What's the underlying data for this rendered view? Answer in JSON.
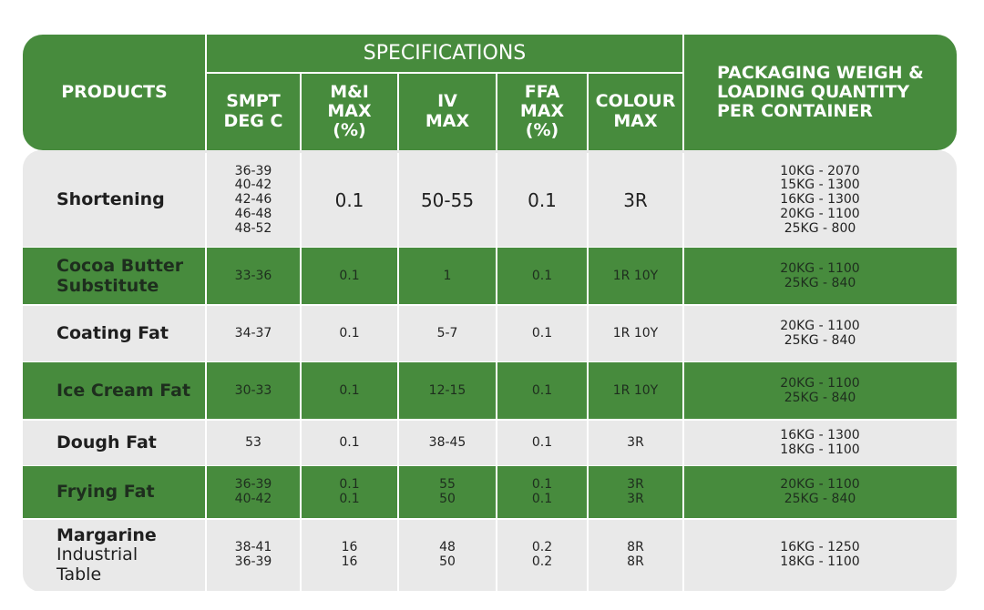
{
  "header": {
    "products": "PRODUCTS",
    "specifications": "SPECIFICATIONS",
    "columns": [
      [
        "SMPT",
        "DEG C"
      ],
      [
        "M&I",
        "MAX",
        "(%)"
      ],
      [
        "IV",
        "MAX"
      ],
      [
        "FFA",
        "MAX",
        "(%)"
      ],
      [
        "COLOUR",
        "MAX"
      ]
    ],
    "packaging": [
      "PACKAGING WEIGH &",
      "LOADING QUANTITY",
      "PER CONTAINER"
    ]
  },
  "rows": [
    {
      "product": [
        "Shortening"
      ],
      "smpt": [
        "36-39",
        "40-42",
        "42-46",
        "46-48",
        "48-52"
      ],
      "mi": [
        "0.1"
      ],
      "iv": [
        "50-55"
      ],
      "ffa": [
        "0.1"
      ],
      "colour": [
        "3R"
      ],
      "packaging": [
        "10KG - 2070",
        "15KG - 1300",
        "16KG - 1300",
        "20KG - 1100",
        "25KG - 800"
      ]
    },
    {
      "product": [
        "Cocoa Butter",
        "Substitute"
      ],
      "smpt": [
        "33-36"
      ],
      "mi": [
        "0.1"
      ],
      "iv": [
        "1"
      ],
      "ffa": [
        "0.1"
      ],
      "colour": [
        "1R 10Y"
      ],
      "packaging": [
        "20KG - 1100",
        "25KG - 840"
      ]
    },
    {
      "product": [
        "Coating Fat"
      ],
      "smpt": [
        "34-37"
      ],
      "mi": [
        "0.1"
      ],
      "iv": [
        "5-7"
      ],
      "ffa": [
        "0.1"
      ],
      "colour": [
        "1R 10Y"
      ],
      "packaging": [
        "20KG - 1100",
        "25KG - 840"
      ]
    },
    {
      "product": [
        "Ice Cream Fat"
      ],
      "smpt": [
        "30-33"
      ],
      "mi": [
        "0.1"
      ],
      "iv": [
        "12-15"
      ],
      "ffa": [
        "0.1"
      ],
      "colour": [
        "1R 10Y"
      ],
      "packaging": [
        "20KG - 1100",
        "25KG - 840"
      ]
    },
    {
      "product": [
        "Dough Fat"
      ],
      "smpt": [
        "53"
      ],
      "mi": [
        "0.1"
      ],
      "iv": [
        "38-45"
      ],
      "ffa": [
        "0.1"
      ],
      "colour": [
        "3R"
      ],
      "packaging": [
        "16KG - 1300",
        "18KG - 1100"
      ]
    },
    {
      "product": [
        "Frying Fat"
      ],
      "smpt": [
        "36-39",
        "40-42"
      ],
      "mi": [
        "0.1",
        "0.1"
      ],
      "iv": [
        "55",
        "50"
      ],
      "ffa": [
        "0.1",
        "0.1"
      ],
      "colour": [
        "3R",
        "3R"
      ],
      "packaging": [
        "20KG - 1100",
        "25KG - 840"
      ]
    },
    {
      "product": [
        "Margarine",
        "Industrial",
        "Table"
      ],
      "smpt": [
        "38-41",
        "36-39"
      ],
      "mi": [
        "16",
        "16"
      ],
      "iv": [
        "48",
        "50"
      ],
      "ffa": [
        "0.2",
        "0.2"
      ],
      "colour": [
        "8R",
        "8R"
      ],
      "packaging": [
        "16KG - 1250",
        "18KG - 1100"
      ]
    }
  ]
}
